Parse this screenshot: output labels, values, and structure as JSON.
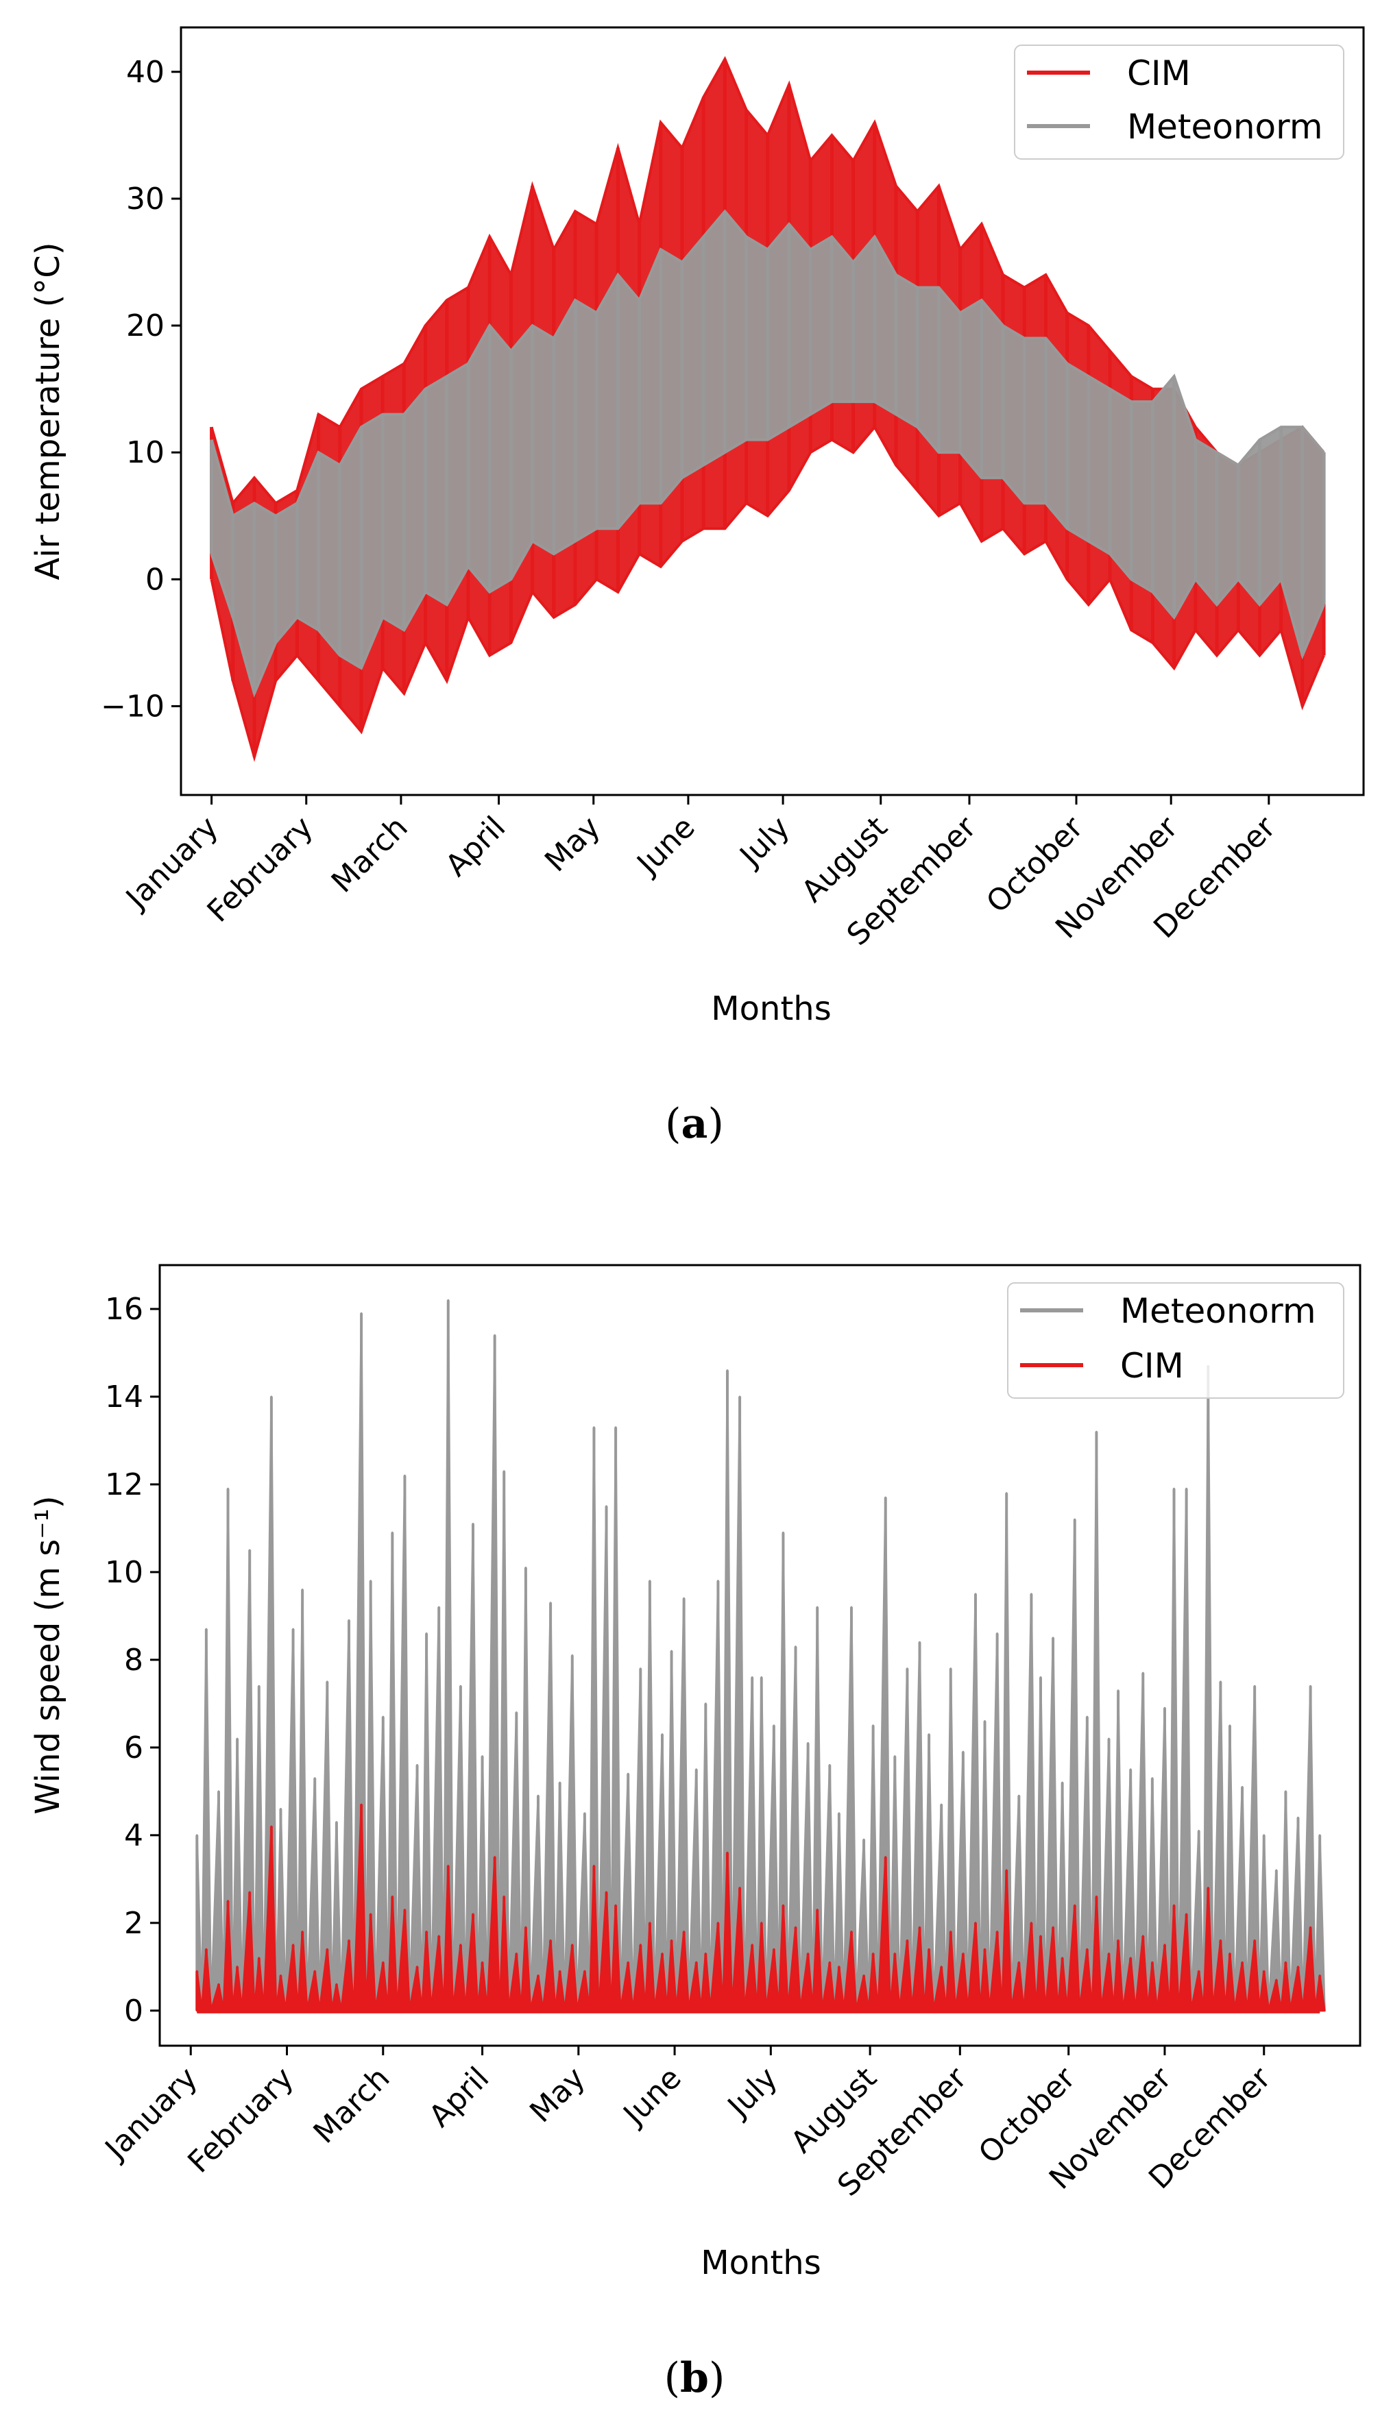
{
  "chart_data": [
    {
      "type": "line",
      "panel": "a",
      "caption_letter": "a",
      "xlabel": "Months",
      "ylabel": "Air temperature (°C)",
      "ylim": [
        -17,
        43.5
      ],
      "yticks": [
        -10,
        0,
        10,
        20,
        30,
        40
      ],
      "ytick_labels": [
        "−10",
        "0",
        "10",
        "20",
        "30",
        "40"
      ],
      "xlim_days": [
        -10,
        377
      ],
      "month_ticks": [
        "January",
        "February",
        "March",
        "April",
        "May",
        "June",
        "July",
        "August",
        "September",
        "October",
        "November",
        "December"
      ],
      "month_tick_days": [
        0,
        31,
        62,
        94,
        125,
        156,
        187,
        219,
        248,
        283,
        314,
        346
      ],
      "legend_position": "top-right",
      "legend": [
        "CIM",
        "Meteonorm"
      ],
      "series": [
        {
          "name": "CIM",
          "color": "#e41a1c",
          "note": "daily maximum / minimum envelope of hourly values",
          "x_days": [
            0,
            7,
            14,
            21,
            28,
            35,
            42,
            49,
            56,
            63,
            70,
            77,
            84,
            91,
            98,
            105,
            112,
            119,
            126,
            133,
            140,
            147,
            154,
            161,
            168,
            175,
            182,
            189,
            196,
            203,
            210,
            217,
            224,
            231,
            238,
            245,
            252,
            259,
            266,
            273,
            280,
            287,
            294,
            301,
            308,
            315,
            322,
            329,
            336,
            343,
            350,
            357,
            364
          ],
          "max": [
            12,
            6,
            8,
            6,
            7,
            13,
            12,
            15,
            16,
            17,
            20,
            22,
            23,
            27,
            24,
            31,
            26,
            29,
            28,
            34,
            28,
            36,
            34,
            38,
            41,
            37,
            35,
            39,
            33,
            35,
            33,
            36,
            31,
            29,
            31,
            26,
            28,
            24,
            23,
            24,
            21,
            20,
            18,
            16,
            15,
            15,
            12,
            10,
            9,
            10,
            11,
            12,
            10
          ],
          "min": [
            0,
            -8,
            -14,
            -8,
            -6,
            -8,
            -10,
            -12,
            -7,
            -9,
            -5,
            -8,
            -3,
            -6,
            -5,
            -1,
            -3,
            -2,
            0,
            -1,
            2,
            1,
            3,
            4,
            4,
            6,
            5,
            7,
            10,
            11,
            10,
            12,
            9,
            7,
            5,
            6,
            3,
            4,
            2,
            3,
            0,
            -2,
            0,
            -4,
            -5,
            -7,
            -4,
            -6,
            -4,
            -6,
            -4,
            -10,
            -6
          ]
        },
        {
          "name": "Meteonorm",
          "color": "#999999",
          "note": "daily maximum / minimum envelope of hourly values",
          "x_days": [
            0,
            7,
            14,
            21,
            28,
            35,
            42,
            49,
            56,
            63,
            70,
            77,
            84,
            91,
            98,
            105,
            112,
            119,
            126,
            133,
            140,
            147,
            154,
            161,
            168,
            175,
            182,
            189,
            196,
            203,
            210,
            217,
            224,
            231,
            238,
            245,
            252,
            259,
            266,
            273,
            280,
            287,
            294,
            301,
            308,
            315,
            322,
            329,
            336,
            343,
            350,
            357,
            364
          ],
          "max": [
            11,
            5,
            6,
            5,
            6,
            10,
            9,
            12,
            13,
            13,
            15,
            16,
            17,
            20,
            18,
            20,
            19,
            22,
            21,
            24,
            22,
            26,
            25,
            27,
            29,
            27,
            26,
            28,
            26,
            27,
            25,
            27,
            24,
            23,
            23,
            21,
            22,
            20,
            19,
            19,
            17,
            16,
            15,
            14,
            14,
            16,
            11,
            10,
            9,
            11,
            12,
            12,
            10
          ],
          "min": [
            2,
            -3,
            -9,
            -5,
            -3,
            -4,
            -6,
            -7,
            -3,
            -4,
            -1,
            -2,
            1,
            -1,
            0,
            3,
            2,
            3,
            4,
            4,
            6,
            6,
            8,
            9,
            10,
            11,
            11,
            12,
            13,
            14,
            14,
            14,
            13,
            12,
            10,
            10,
            8,
            8,
            6,
            6,
            4,
            3,
            2,
            0,
            -1,
            -3,
            0,
            -2,
            0,
            -2,
            0,
            -6,
            -2
          ]
        }
      ]
    },
    {
      "type": "line",
      "panel": "b",
      "caption_letter": "b",
      "xlabel": "Months",
      "ylabel": "Wind speed (m s⁻¹)",
      "ylim": [
        -0.8,
        17.0
      ],
      "yticks": [
        0,
        2,
        4,
        6,
        8,
        10,
        12,
        14,
        16
      ],
      "ytick_labels": [
        "0",
        "2",
        "4",
        "6",
        "8",
        "10",
        "12",
        "14",
        "16"
      ],
      "xlim_days": [
        -10,
        377
      ],
      "month_ticks": [
        "January",
        "February",
        "March",
        "April",
        "May",
        "June",
        "July",
        "August",
        "September",
        "October",
        "November",
        "December"
      ],
      "month_tick_days": [
        0,
        31,
        62,
        94,
        125,
        156,
        187,
        219,
        248,
        283,
        314,
        346
      ],
      "legend_position": "top-right",
      "legend": [
        "Meteonorm",
        "CIM"
      ],
      "series": [
        {
          "name": "Meteonorm",
          "color": "#999999",
          "note": "hourly peak values (approximate)",
          "x_days": [
            2,
            5,
            9,
            12,
            15,
            19,
            22,
            26,
            29,
            33,
            36,
            40,
            44,
            47,
            51,
            55,
            58,
            62,
            65,
            69,
            73,
            76,
            80,
            83,
            87,
            91,
            94,
            98,
            101,
            105,
            108,
            112,
            116,
            119,
            123,
            127,
            130,
            134,
            137,
            141,
            145,
            148,
            152,
            155,
            159,
            163,
            166,
            170,
            173,
            177,
            181,
            184,
            188,
            191,
            195,
            199,
            202,
            206,
            209,
            213,
            217,
            220,
            224,
            227,
            231,
            235,
            238,
            242,
            245,
            249,
            253,
            256,
            260,
            263,
            267,
            271,
            274,
            278,
            281,
            285,
            289,
            292,
            296,
            299,
            303,
            307,
            310,
            314,
            317,
            321,
            325,
            328,
            332,
            335,
            339,
            343,
            346,
            350,
            353,
            357,
            361,
            364
          ],
          "values": [
            4.0,
            8.7,
            5.0,
            11.9,
            6.2,
            10.5,
            7.4,
            14.0,
            4.6,
            8.7,
            9.6,
            5.3,
            7.5,
            4.3,
            8.9,
            15.9,
            9.8,
            6.7,
            10.9,
            12.2,
            5.6,
            8.6,
            9.2,
            16.2,
            7.4,
            11.1,
            5.8,
            15.4,
            12.3,
            6.8,
            10.1,
            4.9,
            9.3,
            5.2,
            8.1,
            4.5,
            13.3,
            11.5,
            13.3,
            5.4,
            7.8,
            9.8,
            6.3,
            8.2,
            9.4,
            5.5,
            7.0,
            9.8,
            14.6,
            14.0,
            7.6,
            7.6,
            6.5,
            10.9,
            8.3,
            6.1,
            9.2,
            5.6,
            4.5,
            9.2,
            3.9,
            6.5,
            11.7,
            5.8,
            7.8,
            8.4,
            6.3,
            4.7,
            7.8,
            5.9,
            9.5,
            6.6,
            8.6,
            11.8,
            4.9,
            9.5,
            7.6,
            8.5,
            5.2,
            11.2,
            6.7,
            13.2,
            6.2,
            7.3,
            5.5,
            7.7,
            5.3,
            6.9,
            11.9,
            11.9,
            4.1,
            14.7,
            7.5,
            6.5,
            5.1,
            7.4,
            4.0,
            3.2,
            5.0,
            4.4,
            7.4,
            4.0
          ]
        },
        {
          "name": "CIM",
          "color": "#e41a1c",
          "note": "hourly peak values (approximate)",
          "x_days": [
            2,
            5,
            9,
            12,
            15,
            19,
            22,
            26,
            29,
            33,
            36,
            40,
            44,
            47,
            51,
            55,
            58,
            62,
            65,
            69,
            73,
            76,
            80,
            83,
            87,
            91,
            94,
            98,
            101,
            105,
            108,
            112,
            116,
            119,
            123,
            127,
            130,
            134,
            137,
            141,
            145,
            148,
            152,
            155,
            159,
            163,
            166,
            170,
            173,
            177,
            181,
            184,
            188,
            191,
            195,
            199,
            202,
            206,
            209,
            213,
            217,
            220,
            224,
            227,
            231,
            235,
            238,
            242,
            245,
            249,
            253,
            256,
            260,
            263,
            267,
            271,
            274,
            278,
            281,
            285,
            289,
            292,
            296,
            299,
            303,
            307,
            310,
            314,
            317,
            321,
            325,
            328,
            332,
            335,
            339,
            343,
            346,
            350,
            353,
            357,
            361,
            364
          ],
          "values": [
            0.9,
            1.4,
            0.6,
            2.5,
            1.0,
            2.7,
            1.2,
            4.2,
            0.8,
            1.5,
            1.8,
            0.9,
            1.4,
            0.6,
            1.6,
            4.7,
            2.2,
            1.1,
            2.6,
            2.3,
            1.0,
            1.8,
            1.7,
            3.3,
            1.5,
            2.2,
            1.1,
            3.5,
            2.6,
            1.3,
            1.9,
            0.8,
            1.6,
            0.9,
            1.5,
            0.9,
            3.3,
            2.7,
            2.4,
            1.1,
            1.5,
            2.0,
            1.3,
            1.6,
            1.8,
            1.1,
            1.3,
            2.0,
            3.6,
            2.8,
            1.5,
            2.0,
            1.4,
            2.4,
            1.9,
            1.3,
            2.3,
            1.1,
            1.0,
            1.8,
            0.8,
            1.3,
            3.5,
            1.3,
            1.6,
            1.9,
            1.4,
            1.0,
            1.8,
            1.3,
            2.0,
            1.4,
            1.8,
            3.2,
            1.1,
            2.0,
            1.7,
            1.9,
            1.2,
            2.4,
            1.4,
            2.6,
            1.3,
            1.6,
            1.2,
            1.7,
            1.1,
            1.5,
            2.4,
            2.2,
            0.9,
            2.8,
            1.6,
            1.3,
            1.1,
            1.6,
            0.9,
            0.7,
            1.1,
            1.0,
            1.9,
            0.8
          ]
        }
      ]
    }
  ]
}
